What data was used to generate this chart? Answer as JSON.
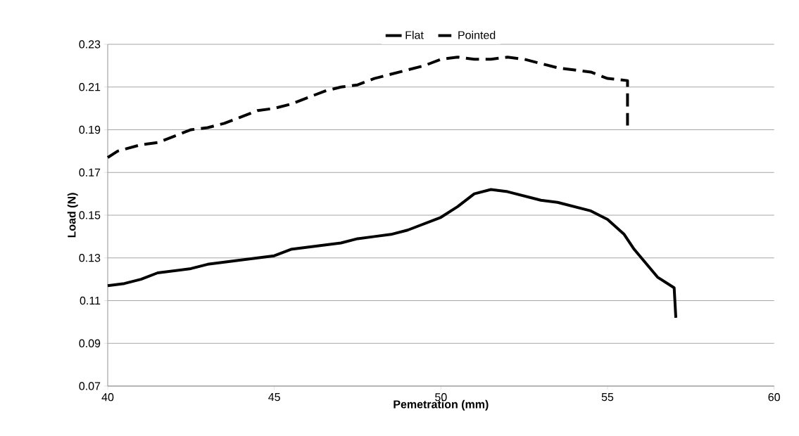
{
  "chart_data": {
    "type": "line",
    "xlabel": "Pemetration (mm)",
    "ylabel": "Load (N)",
    "xlim": [
      40,
      60
    ],
    "xticks": [
      40,
      45,
      50,
      55,
      60
    ],
    "ylim": [
      0.07,
      0.23
    ],
    "yticks": [
      0.07,
      0.09,
      0.11,
      0.13,
      0.15,
      0.17,
      0.19,
      0.21,
      0.23
    ],
    "grid": "y",
    "legend": "top",
    "marker": "none",
    "series": [
      {
        "name": "Flat",
        "color": "#000000",
        "line_style": "solid",
        "x": [
          40,
          40.5,
          41,
          41.5,
          42,
          42.5,
          43,
          43.5,
          44,
          44.5,
          45,
          45.5,
          46,
          46.5,
          47,
          47.5,
          48,
          48.5,
          49,
          49.5,
          50,
          50.5,
          51,
          51.5,
          52,
          52.5,
          53,
          53.5,
          54,
          54.5,
          55,
          55.5,
          55.8,
          56.5,
          57,
          57.05
        ],
        "values": [
          0.117,
          0.118,
          0.12,
          0.123,
          0.124,
          0.125,
          0.127,
          0.128,
          0.129,
          0.13,
          0.131,
          0.134,
          0.135,
          0.136,
          0.137,
          0.139,
          0.14,
          0.141,
          0.143,
          0.146,
          0.149,
          0.154,
          0.16,
          0.162,
          0.161,
          0.159,
          0.157,
          0.156,
          0.154,
          0.152,
          0.148,
          0.141,
          0.134,
          0.121,
          0.116,
          0.102
        ]
      },
      {
        "name": "Pointed",
        "color": "#000000",
        "line_style": "dashed",
        "x": [
          40,
          40.3,
          41,
          41.5,
          42,
          42.5,
          43,
          43.5,
          44,
          44.5,
          45,
          45.5,
          46,
          46.5,
          47,
          47.5,
          48,
          48.5,
          49,
          49.5,
          50,
          50.5,
          51,
          51.5,
          52,
          52.5,
          53,
          53.5,
          54,
          54.5,
          55,
          55.6,
          55.6
        ],
        "values": [
          0.177,
          0.18,
          0.183,
          0.184,
          0.187,
          0.19,
          0.191,
          0.193,
          0.196,
          0.199,
          0.2,
          0.202,
          0.205,
          0.208,
          0.21,
          0.211,
          0.214,
          0.216,
          0.218,
          0.22,
          0.223,
          0.224,
          0.223,
          0.223,
          0.224,
          0.223,
          0.221,
          0.219,
          0.218,
          0.217,
          0.214,
          0.213,
          0.192
        ]
      }
    ]
  }
}
